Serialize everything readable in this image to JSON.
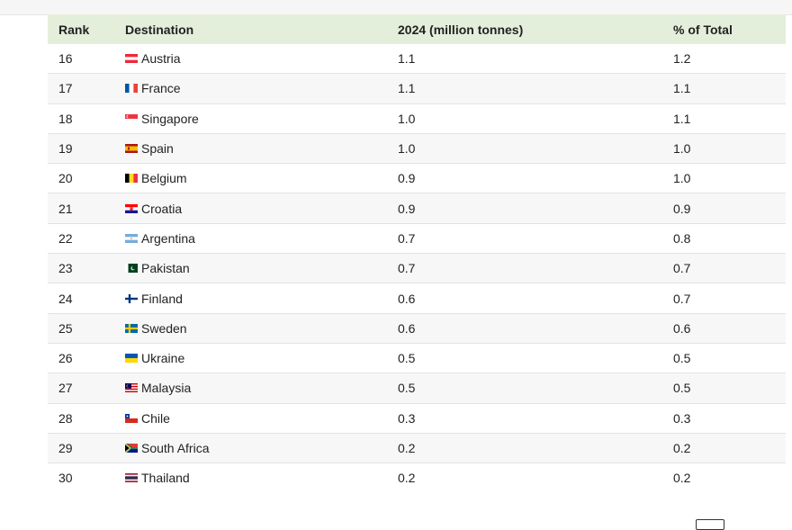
{
  "table": {
    "headers": {
      "rank": "Rank",
      "destination": "Destination",
      "value": "2024 (million tonnes)",
      "share": "% of Total"
    },
    "rows": [
      {
        "rank": "16",
        "destination": "Austria",
        "flag": "austria-flag",
        "value": "1.1",
        "share": "1.2"
      },
      {
        "rank": "17",
        "destination": "France",
        "flag": "france-flag",
        "value": "1.1",
        "share": "1.1"
      },
      {
        "rank": "18",
        "destination": "Singapore",
        "flag": "singapore-flag",
        "value": "1.0",
        "share": "1.1"
      },
      {
        "rank": "19",
        "destination": "Spain",
        "flag": "spain-flag",
        "value": "1.0",
        "share": "1.0"
      },
      {
        "rank": "20",
        "destination": "Belgium",
        "flag": "belgium-flag",
        "value": "0.9",
        "share": "1.0"
      },
      {
        "rank": "21",
        "destination": "Croatia",
        "flag": "croatia-flag",
        "value": "0.9",
        "share": "0.9"
      },
      {
        "rank": "22",
        "destination": "Argentina",
        "flag": "argentina-flag",
        "value": "0.7",
        "share": "0.8"
      },
      {
        "rank": "23",
        "destination": "Pakistan",
        "flag": "pakistan-flag",
        "value": "0.7",
        "share": "0.7"
      },
      {
        "rank": "24",
        "destination": "Finland",
        "flag": "finland-flag",
        "value": "0.6",
        "share": "0.7"
      },
      {
        "rank": "25",
        "destination": "Sweden",
        "flag": "sweden-flag",
        "value": "0.6",
        "share": "0.6"
      },
      {
        "rank": "26",
        "destination": "Ukraine",
        "flag": "ukraine-flag",
        "value": "0.5",
        "share": "0.5"
      },
      {
        "rank": "27",
        "destination": "Malaysia",
        "flag": "malaysia-flag",
        "value": "0.5",
        "share": "0.5"
      },
      {
        "rank": "28",
        "destination": "Chile",
        "flag": "chile-flag",
        "value": "0.3",
        "share": "0.3"
      },
      {
        "rank": "29",
        "destination": "South Africa",
        "flag": "south-africa-flag",
        "value": "0.2",
        "share": "0.2"
      },
      {
        "rank": "30",
        "destination": "Thailand",
        "flag": "thailand-flag",
        "value": "0.2",
        "share": "0.2"
      }
    ]
  },
  "colors": {
    "header_bg": "#e4efdb",
    "stripe_bg": "#f7f7f7",
    "row_border": "#e3e3e3",
    "text": "#222222"
  }
}
